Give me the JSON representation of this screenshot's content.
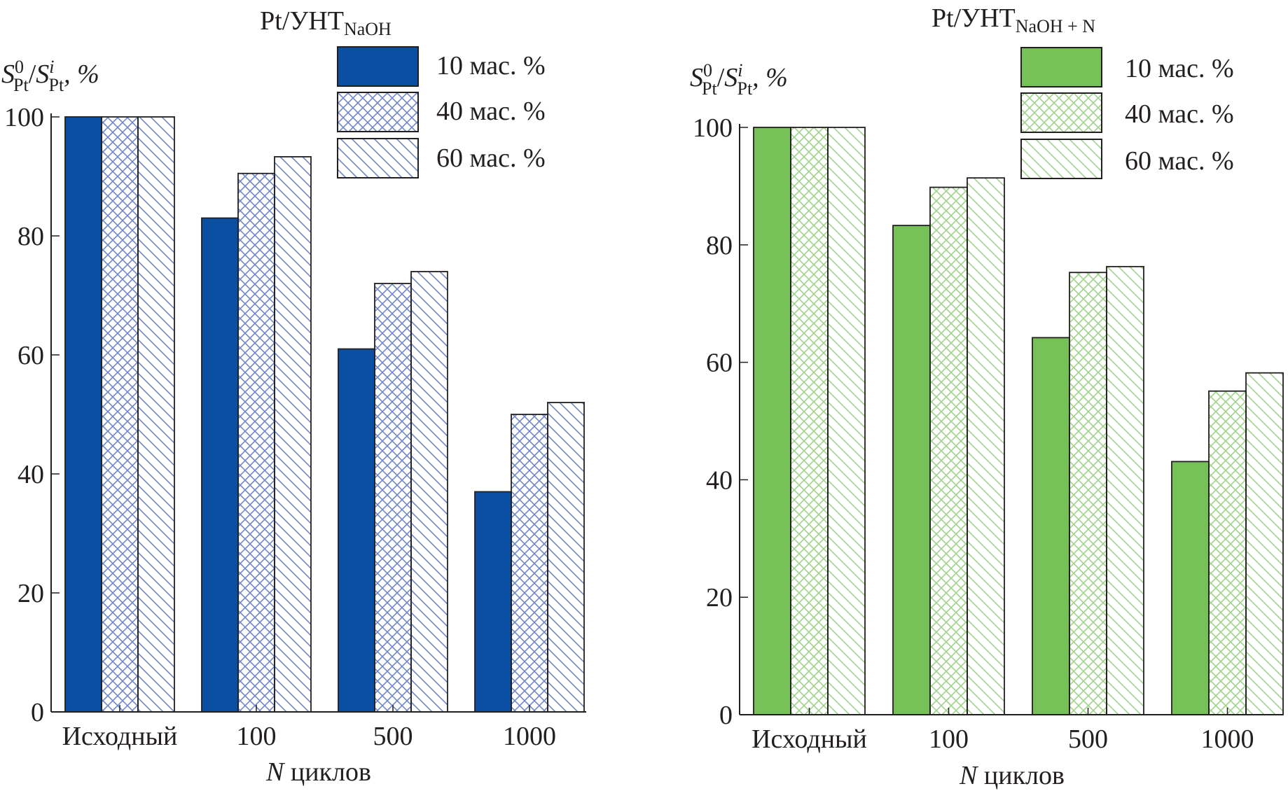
{
  "chart_data": [
    {
      "type": "bar",
      "title": {
        "main": "Pt/УНТ",
        "sub": "NaOH"
      },
      "ylabel": {
        "symbol": "S",
        "sup_num": "0",
        "sub_num": "Pt",
        "slash": "/",
        "sup_den": "i",
        "sub_den": "Pt",
        "suffix": ", %"
      },
      "xlabel": {
        "var": "N",
        "text": " циклов"
      },
      "categories": [
        "Исходный",
        "100",
        "500",
        "1000"
      ],
      "ylim": [
        0,
        100
      ],
      "yticks": [
        0,
        20,
        40,
        60,
        80,
        100
      ],
      "legend_position": "top-right",
      "grid": false,
      "series": [
        {
          "name": "10 мас. %",
          "pattern": "solid",
          "values": [
            100,
            83,
            61,
            37
          ]
        },
        {
          "name": "40 мас. %",
          "pattern": "crosshatch",
          "values": [
            100,
            90.5,
            72,
            50
          ]
        },
        {
          "name": "60 мас. %",
          "pattern": "diagonal",
          "values": [
            100,
            93.3,
            74,
            52
          ]
        }
      ],
      "colors": {
        "main": "#0b4fa3",
        "hatch": "#6f86cc"
      }
    },
    {
      "type": "bar",
      "title": {
        "main": "Pt/УНТ",
        "sub": "NaOH + N"
      },
      "ylabel": {
        "symbol": "S",
        "sup_num": "0",
        "sub_num": "Pt",
        "slash": "/",
        "sup_den": "i",
        "sub_den": "Pt",
        "suffix": ", %"
      },
      "xlabel": {
        "var": "N",
        "text": " циклов"
      },
      "categories": [
        "Исходный",
        "100",
        "500",
        "1000"
      ],
      "ylim": [
        0,
        100
      ],
      "yticks": [
        0,
        20,
        40,
        60,
        80,
        100
      ],
      "legend_position": "top-right",
      "grid": false,
      "series": [
        {
          "name": "10 мас. %",
          "pattern": "solid",
          "values": [
            100,
            83.3,
            64.2,
            43.1
          ]
        },
        {
          "name": "40 мас. %",
          "pattern": "crosshatch",
          "values": [
            100,
            89.8,
            75.3,
            55.1
          ]
        },
        {
          "name": "60 мас. %",
          "pattern": "diagonal",
          "values": [
            100,
            91.4,
            76.3,
            58.2
          ]
        }
      ],
      "colors": {
        "main": "#77c159",
        "hatch": "#9fd38a"
      }
    }
  ]
}
